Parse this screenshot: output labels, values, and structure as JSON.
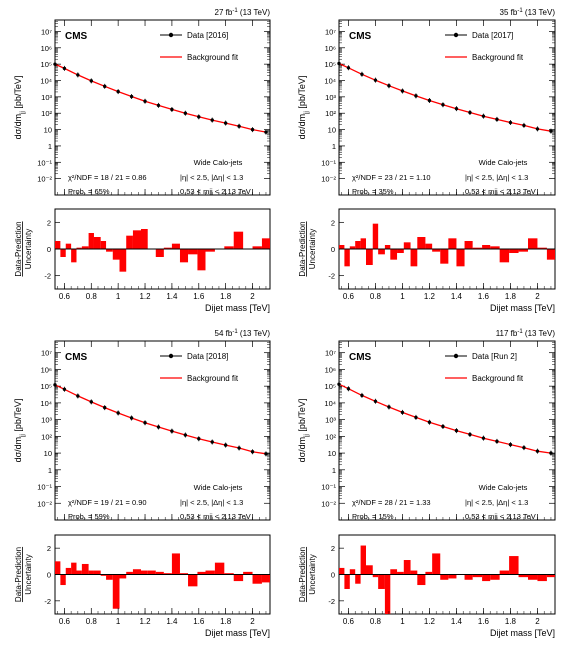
{
  "figure": {
    "shared": {
      "experiment": "CMS",
      "energy": "(13 TeV)",
      "y_axis_label": "dσ/dm",
      "y_axis_label_sub": "jj",
      "y_axis_label_unit": " [pb/TeV]",
      "ratio_label_top": "Data-Prediction",
      "ratio_label_bottom": "Uncertainty",
      "x_axis_label": "Dijet mass [TeV]",
      "fit_label": "Background fit",
      "selection": "Wide Calo-jets",
      "cuts_eta": "|η| < 2.5, |Δη| < 1.3",
      "colors": {
        "data": "#000000",
        "fit": "#ff0000",
        "ratio_fill": "#ff0000"
      }
    },
    "panels": [
      {
        "lumi": "27 fb",
        "lumi_sup": "-1",
        "data_label": "Data [2016]",
        "chi2": "χ²/NDF = 18 / 21 = 0.86",
        "prob": "Prob. = 65%",
        "mass_range": "0.53 < mjj < 2.13 TeV"
      },
      {
        "lumi": "35 fb",
        "lumi_sup": "-1",
        "data_label": "Data [2017]",
        "chi2": "χ²/NDF = 23 / 21 = 1.10",
        "prob": "Prob. = 35%",
        "mass_range": "0.53 < mjj < 2.13 TeV"
      },
      {
        "lumi": "54 fb",
        "lumi_sup": "-1",
        "data_label": "Data [2018]",
        "chi2": "χ²/NDF = 19 / 21 = 0.90",
        "prob": "Prob. = 59%",
        "mass_range": "0.53 < mjj < 2.13 TeV"
      },
      {
        "lumi": "117 fb",
        "lumi_sup": "-1",
        "data_label": "Data [Run 2]",
        "chi2": "χ²/NDF = 28 / 21 = 1.33",
        "prob": "Prob. = 15%",
        "mass_range": "0.53 < mjj < 2.13 TeV"
      }
    ]
  },
  "chart_data": [
    {
      "type": "scatter",
      "title": "27 fb-1 (13 TeV)",
      "xlabel": "Dijet mass [TeV]",
      "ylabel": "dσ/dmjj [pb/TeV]",
      "log_y": true,
      "xlim": [
        0.53,
        2.13
      ],
      "ylim": [
        0.001,
        50000000
      ],
      "x_ticks": [
        "0.6",
        "0.8",
        "1",
        "1.2",
        "1.4",
        "1.6",
        "1.8",
        "2"
      ],
      "y_ticks": [
        "10⁻²",
        "10⁻¹",
        "1",
        "10",
        "10²",
        "10³",
        "10⁴",
        "10⁵",
        "10⁶",
        "10⁷"
      ],
      "legend": [
        "Data [2016]",
        "Background fit"
      ],
      "legend_position": "top-right",
      "series": [
        {
          "name": "Data [2016]",
          "x": [
            0.53,
            0.6,
            0.7,
            0.8,
            0.9,
            1.0,
            1.1,
            1.2,
            1.3,
            1.4,
            1.5,
            1.6,
            1.7,
            1.8,
            1.9,
            2.0,
            2.1
          ],
          "values": [
            100000,
            55000,
            22000,
            9500,
            4400,
            2100,
            1050,
            540,
            300,
            170,
            100,
            60,
            38,
            25,
            16,
            10,
            7
          ]
        },
        {
          "name": "Background fit",
          "x": [
            0.53,
            0.6,
            0.7,
            0.8,
            0.9,
            1.0,
            1.1,
            1.2,
            1.3,
            1.4,
            1.5,
            1.6,
            1.7,
            1.8,
            1.9,
            2.0,
            2.1
          ],
          "values": [
            100000,
            55000,
            22000,
            9500,
            4400,
            2100,
            1050,
            540,
            300,
            170,
            100,
            60,
            38,
            25,
            16,
            10,
            7
          ]
        }
      ],
      "ratio": {
        "ylabel": "Data-Prediction / Uncertainty",
        "ylim": [
          -3,
          3
        ],
        "y_ticks": [
          "-2",
          "0",
          "2"
        ],
        "bin_edges": [
          0.53,
          0.57,
          0.61,
          0.65,
          0.69,
          0.73,
          0.78,
          0.82,
          0.87,
          0.91,
          0.96,
          1.01,
          1.06,
          1.11,
          1.17,
          1.22,
          1.28,
          1.34,
          1.4,
          1.46,
          1.52,
          1.59,
          1.65,
          1.72,
          1.79,
          1.86,
          1.93,
          2.0,
          2.07,
          2.13
        ],
        "values": [
          0.6,
          -0.6,
          0.4,
          -1.0,
          0.1,
          0.2,
          1.2,
          0.9,
          0.6,
          -0.2,
          -0.8,
          -1.7,
          1.0,
          1.4,
          1.5,
          0.0,
          -0.6,
          0.1,
          0.4,
          -1.0,
          -0.4,
          -1.6,
          -0.2,
          0.0,
          0.2,
          1.3,
          0.0,
          0.2,
          0.8
        ]
      }
    },
    {
      "type": "scatter",
      "title": "35 fb-1 (13 TeV)",
      "xlabel": "Dijet mass [TeV]",
      "ylabel": "dσ/dmjj [pb/TeV]",
      "log_y": true,
      "xlim": [
        0.53,
        2.13
      ],
      "ylim": [
        0.001,
        50000000
      ],
      "x_ticks": [
        "0.6",
        "0.8",
        "1",
        "1.2",
        "1.4",
        "1.6",
        "1.8",
        "2"
      ],
      "y_ticks": [
        "10⁻²",
        "10⁻¹",
        "1",
        "10",
        "10²",
        "10³",
        "10⁴",
        "10⁵",
        "10⁶",
        "10⁷"
      ],
      "legend": [
        "Data [2017]",
        "Background fit"
      ],
      "legend_position": "top-right",
      "series": [
        {
          "name": "Data [2017]",
          "x": [
            0.53,
            0.6,
            0.7,
            0.8,
            0.9,
            1.0,
            1.1,
            1.2,
            1.3,
            1.4,
            1.5,
            1.6,
            1.7,
            1.8,
            1.9,
            2.0,
            2.1
          ],
          "values": [
            110000,
            60000,
            24000,
            10500,
            4800,
            2300,
            1150,
            600,
            330,
            190,
            110,
            66,
            42,
            27,
            18,
            11,
            8
          ]
        },
        {
          "name": "Background fit",
          "x": [
            0.53,
            0.6,
            0.7,
            0.8,
            0.9,
            1.0,
            1.1,
            1.2,
            1.3,
            1.4,
            1.5,
            1.6,
            1.7,
            1.8,
            1.9,
            2.0,
            2.1
          ],
          "values": [
            110000,
            60000,
            24000,
            10500,
            4800,
            2300,
            1150,
            600,
            330,
            190,
            110,
            66,
            42,
            27,
            18,
            11,
            8
          ]
        }
      ],
      "ratio": {
        "ylabel": "Data-Prediction / Uncertainty",
        "ylim": [
          -3,
          3
        ],
        "y_ticks": [
          "-2",
          "0",
          "2"
        ],
        "bin_edges": [
          0.53,
          0.57,
          0.61,
          0.65,
          0.69,
          0.73,
          0.78,
          0.82,
          0.87,
          0.91,
          0.96,
          1.01,
          1.06,
          1.11,
          1.17,
          1.22,
          1.28,
          1.34,
          1.4,
          1.46,
          1.52,
          1.59,
          1.65,
          1.72,
          1.79,
          1.86,
          1.93,
          2.0,
          2.07,
          2.13
        ],
        "values": [
          0.3,
          -1.3,
          0.2,
          0.6,
          0.8,
          -1.2,
          1.9,
          -0.4,
          0.3,
          -0.8,
          -0.3,
          0.5,
          -1.3,
          0.9,
          0.4,
          -0.2,
          -1.1,
          0.8,
          -1.3,
          0.6,
          0.1,
          0.3,
          0.2,
          -1.0,
          -0.3,
          -0.2,
          0.8,
          0.1,
          -0.8
        ]
      }
    },
    {
      "type": "scatter",
      "title": "54 fb-1 (13 TeV)",
      "xlabel": "Dijet mass [TeV]",
      "ylabel": "dσ/dmjj [pb/TeV]",
      "log_y": true,
      "xlim": [
        0.53,
        2.13
      ],
      "ylim": [
        0.001,
        50000000
      ],
      "x_ticks": [
        "0.6",
        "0.8",
        "1",
        "1.2",
        "1.4",
        "1.6",
        "1.8",
        "2"
      ],
      "y_ticks": [
        "10⁻²",
        "10⁻¹",
        "1",
        "10",
        "10²",
        "10³",
        "10⁴",
        "10⁵",
        "10⁶",
        "10⁷"
      ],
      "legend": [
        "Data [2018]",
        "Background fit"
      ],
      "legend_position": "top-right",
      "series": [
        {
          "name": "Data [2018]",
          "x": [
            0.53,
            0.6,
            0.7,
            0.8,
            0.9,
            1.0,
            1.1,
            1.2,
            1.3,
            1.4,
            1.5,
            1.6,
            1.7,
            1.8,
            1.9,
            2.0,
            2.1
          ],
          "values": [
            120000,
            65000,
            26000,
            11500,
            5200,
            2500,
            1250,
            650,
            360,
            205,
            120,
            72,
            46,
            30,
            20,
            12,
            9
          ]
        },
        {
          "name": "Background fit",
          "x": [
            0.53,
            0.6,
            0.7,
            0.8,
            0.9,
            1.0,
            1.1,
            1.2,
            1.3,
            1.4,
            1.5,
            1.6,
            1.7,
            1.8,
            1.9,
            2.0,
            2.1
          ],
          "values": [
            120000,
            65000,
            26000,
            11500,
            5200,
            2500,
            1250,
            650,
            360,
            205,
            120,
            72,
            46,
            30,
            20,
            12,
            9
          ]
        }
      ],
      "ratio": {
        "ylabel": "Data-Prediction / Uncertainty",
        "ylim": [
          -3,
          3
        ],
        "y_ticks": [
          "-2",
          "0",
          "2"
        ],
        "bin_edges": [
          0.53,
          0.57,
          0.61,
          0.65,
          0.69,
          0.73,
          0.78,
          0.82,
          0.87,
          0.91,
          0.96,
          1.01,
          1.06,
          1.11,
          1.17,
          1.22,
          1.28,
          1.34,
          1.4,
          1.46,
          1.52,
          1.59,
          1.65,
          1.72,
          1.79,
          1.86,
          1.93,
          2.0,
          2.07,
          2.13
        ],
        "values": [
          1.0,
          -0.8,
          0.5,
          0.9,
          0.3,
          0.8,
          0.3,
          0.3,
          -0.1,
          -0.4,
          -2.6,
          -0.3,
          0.2,
          0.4,
          0.3,
          0.3,
          0.2,
          0.1,
          1.6,
          0.1,
          -0.9,
          0.2,
          0.3,
          0.9,
          0.1,
          -0.5,
          0.2,
          -0.7,
          -0.6
        ]
      }
    },
    {
      "type": "scatter",
      "title": "117 fb-1 (13 TeV)",
      "xlabel": "Dijet mass [TeV]",
      "ylabel": "dσ/dmjj [pb/TeV]",
      "log_y": true,
      "xlim": [
        0.53,
        2.13
      ],
      "ylim": [
        0.001,
        50000000
      ],
      "x_ticks": [
        "0.6",
        "0.8",
        "1",
        "1.2",
        "1.4",
        "1.6",
        "1.8",
        "2"
      ],
      "y_ticks": [
        "10⁻²",
        "10⁻¹",
        "1",
        "10",
        "10²",
        "10³",
        "10⁴",
        "10⁵",
        "10⁶",
        "10⁷"
      ],
      "legend": [
        "Data [Run 2]",
        "Background fit"
      ],
      "legend_position": "top-right",
      "series": [
        {
          "name": "Data [Run 2]",
          "x": [
            0.53,
            0.6,
            0.7,
            0.8,
            0.9,
            1.0,
            1.1,
            1.2,
            1.3,
            1.4,
            1.5,
            1.6,
            1.7,
            1.8,
            1.9,
            2.0,
            2.1
          ],
          "values": [
            130000,
            70000,
            28000,
            12500,
            5700,
            2700,
            1350,
            700,
            390,
            220,
            130,
            78,
            50,
            32,
            21,
            13,
            10
          ]
        },
        {
          "name": "Background fit",
          "x": [
            0.53,
            0.6,
            0.7,
            0.8,
            0.9,
            1.0,
            1.1,
            1.2,
            1.3,
            1.4,
            1.5,
            1.6,
            1.7,
            1.8,
            1.9,
            2.0,
            2.1
          ],
          "values": [
            130000,
            70000,
            28000,
            12500,
            5700,
            2700,
            1350,
            700,
            390,
            220,
            130,
            78,
            50,
            32,
            21,
            13,
            10
          ]
        }
      ],
      "ratio": {
        "ylabel": "Data-Prediction / Uncertainty",
        "ylim": [
          -3,
          3
        ],
        "y_ticks": [
          "-2",
          "0",
          "2"
        ],
        "bin_edges": [
          0.53,
          0.57,
          0.61,
          0.65,
          0.69,
          0.73,
          0.78,
          0.82,
          0.87,
          0.91,
          0.96,
          1.01,
          1.06,
          1.11,
          1.17,
          1.22,
          1.28,
          1.34,
          1.4,
          1.46,
          1.52,
          1.59,
          1.65,
          1.72,
          1.79,
          1.86,
          1.93,
          2.0,
          2.07,
          2.13
        ],
        "values": [
          0.5,
          -1.1,
          0.4,
          -0.7,
          2.2,
          0.7,
          -0.2,
          -1.1,
          -3.0,
          0.4,
          0.2,
          1.1,
          0.3,
          -0.8,
          0.2,
          1.6,
          -0.4,
          -0.3,
          0.0,
          -0.4,
          -0.2,
          -0.5,
          -0.4,
          0.3,
          1.4,
          -0.2,
          -0.4,
          -0.5,
          -0.2
        ]
      }
    }
  ]
}
